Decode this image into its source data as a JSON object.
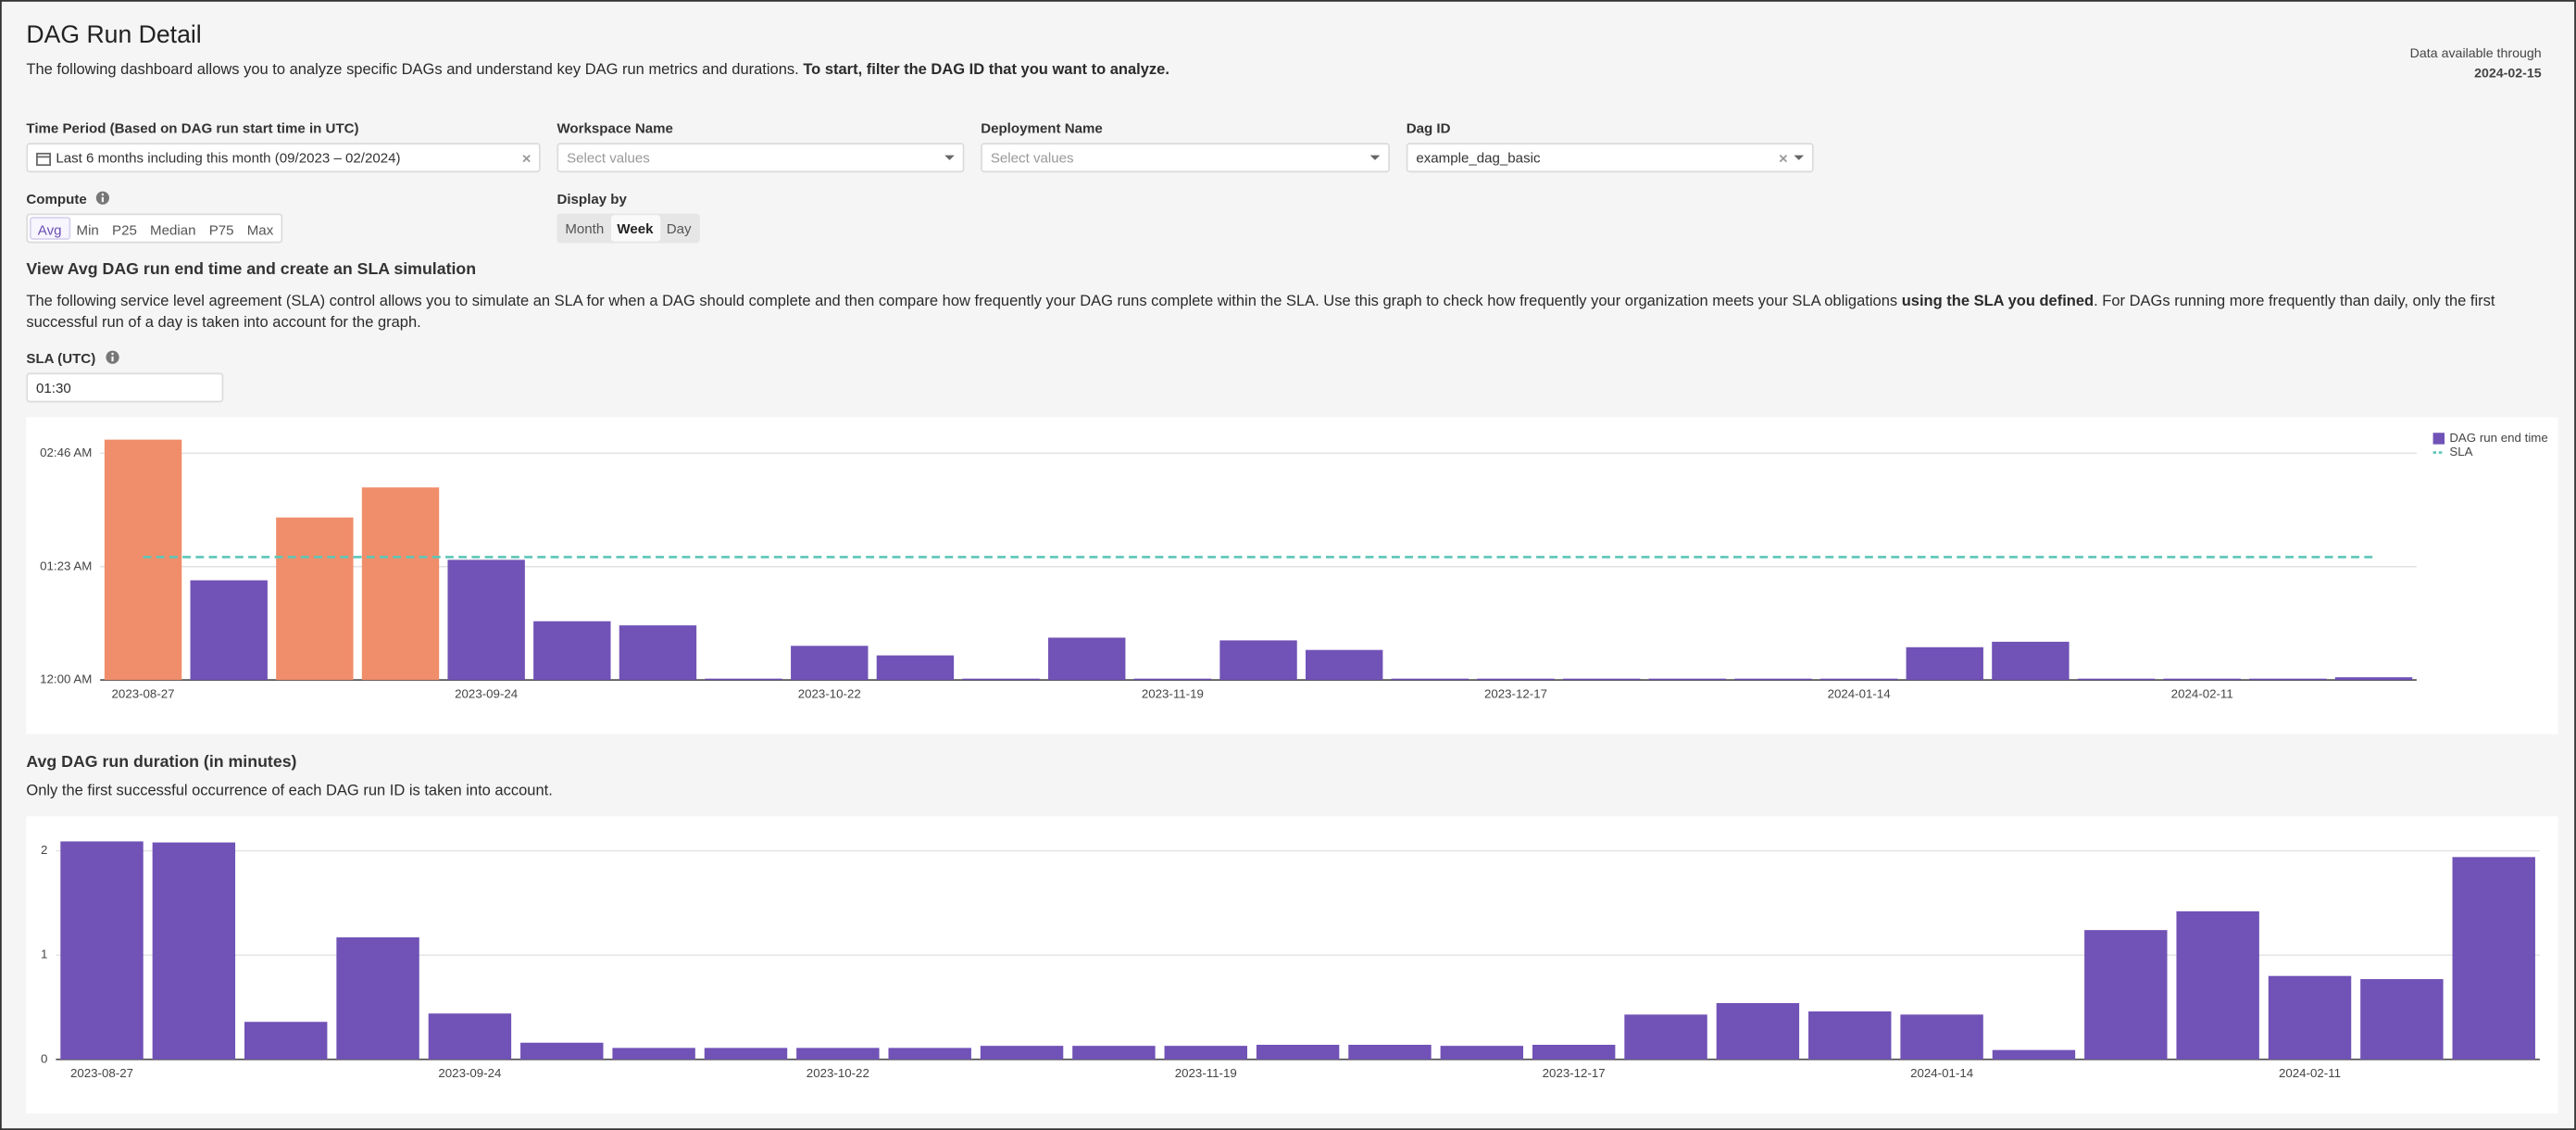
{
  "header": {
    "title": "DAG Run Detail",
    "intro": "The following dashboard allows you to analyze specific DAGs and understand key DAG run metrics and durations.",
    "intro_bold": "To start, filter the DAG ID that you want to analyze.",
    "availability_label": "Data available through",
    "availability_date": "2024-02-15"
  },
  "filters": [
    {
      "label": "Time Period (Based on DAG run start time in UTC)",
      "value": "Last 6 months including this month (09/2023 – 02/2024)"
    },
    {
      "label": "Workspace Name",
      "placeholder": "Select values"
    },
    {
      "label": "Deployment Name",
      "placeholder": "Select values"
    },
    {
      "label": "Dag ID",
      "value": "example_dag_basic"
    }
  ],
  "compute": {
    "label": "Compute",
    "options": [
      "Avg",
      "Min",
      "P25",
      "Median",
      "P75",
      "Max"
    ],
    "selected": 0
  },
  "display_by": {
    "label": "Display by",
    "options": [
      "Month",
      "Week",
      "Day"
    ],
    "selected": 1
  },
  "sla_control": {
    "label": "SLA (UTC)",
    "value": "01:30"
  },
  "chart_data": [
    {
      "type": "bar",
      "title": "View Avg DAG run end time and create an SLA simulation",
      "description": [
        "The following service level agreement (SLA) control allows you to simulate an SLA for when a DAG should complete and then compare how frequently your DAG runs complete within the SLA. Use this graph to check how frequently your organization meets your SLA obligations ",
        "using the SLA you defined",
        ". For DAGs running more frequently than daily, only the first successful run of a day is taken into account for the graph."
      ],
      "categories": [
        "2023-08-27",
        null,
        null,
        null,
        "2023-09-24",
        null,
        null,
        null,
        "2023-10-22",
        null,
        null,
        null,
        "2023-11-19",
        null,
        null,
        null,
        "2023-12-17",
        null,
        null,
        null,
        "2024-01-14",
        null,
        null,
        null,
        "2024-02-11",
        null,
        null
      ],
      "series": [
        {
          "name": "DAG run end time",
          "color": "#7152b6",
          "values": [
            176,
            73,
            119,
            141,
            88,
            43,
            40,
            1,
            25,
            18,
            1,
            31,
            1,
            29,
            22,
            1,
            1,
            1,
            1,
            1,
            1,
            24,
            28,
            1,
            1,
            1,
            2
          ]
        }
      ],
      "over_sla_color": "#f08d6b",
      "sla": {
        "name": "SLA",
        "value": 90,
        "color": "#5cc6b7"
      },
      "ylim": [
        0,
        178
      ],
      "yticks": [
        {
          "value": 0,
          "label": "12:00 AM"
        },
        {
          "value": 83,
          "label": "01:23 AM"
        },
        {
          "value": 166,
          "label": "02:46 AM"
        }
      ],
      "grid": true,
      "legend": "top-right"
    },
    {
      "type": "bar",
      "title": "Avg DAG run duration (in minutes)",
      "subtitle": "Only the first successful occurrence of each DAG run ID is taken into account.",
      "categories": [
        "2023-08-27",
        null,
        null,
        null,
        "2023-09-24",
        null,
        null,
        null,
        "2023-10-22",
        null,
        null,
        null,
        "2023-11-19",
        null,
        null,
        null,
        "2023-12-17",
        null,
        null,
        null,
        "2024-01-14",
        null,
        null,
        null,
        "2024-02-11",
        null,
        null
      ],
      "series": [
        {
          "color": "#7152b6",
          "values": [
            2.09,
            2.08,
            0.36,
            1.17,
            0.44,
            0.16,
            0.11,
            0.11,
            0.11,
            0.11,
            0.13,
            0.13,
            0.13,
            0.14,
            0.14,
            0.13,
            0.14,
            0.43,
            0.54,
            0.46,
            0.43,
            0.09,
            1.24,
            1.42,
            0.8,
            0.77,
            1.94
          ]
        }
      ],
      "ylim": [
        0,
        2.2
      ],
      "yticks": [
        0,
        1,
        2
      ],
      "grid": true
    }
  ]
}
